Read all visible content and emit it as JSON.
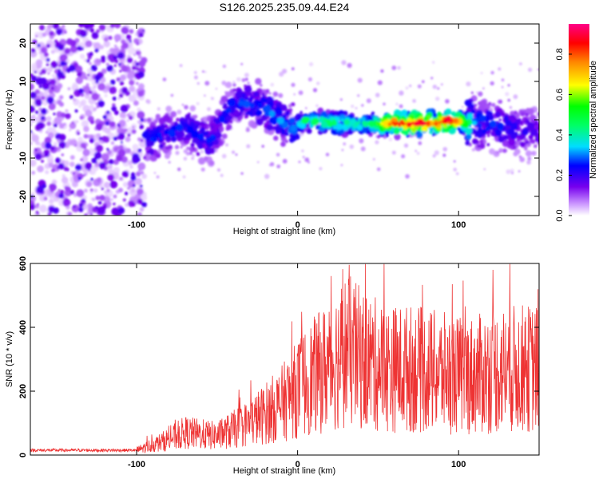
{
  "title": "S126.2025.235.09.44.E24",
  "chart_data": [
    {
      "type": "heatmap",
      "xlabel": "Height of straight line (km)",
      "ylabel": "Frequency (Hz)",
      "xlim": [
        -166,
        150
      ],
      "ylim": [
        -25,
        25
      ],
      "xticks": [
        -100,
        0,
        100
      ],
      "yticks": [
        -20,
        -10,
        0,
        10,
        20
      ],
      "colorbar": {
        "label": "Normalized spectral amplitude",
        "range": [
          0,
          0.95
        ],
        "ticks": [
          0.0,
          0.2,
          0.4,
          0.6,
          0.8
        ],
        "colors": [
          "#ffffff",
          "#cc99ff",
          "#7700ee",
          "#0000ff",
          "#00ddff",
          "#00ff66",
          "#00ff00",
          "#ffff00",
          "#ff8800",
          "#ff0000",
          "#ff0088"
        ]
      },
      "ridge": [
        {
          "x": -90,
          "y": -5,
          "a": 0.25
        },
        {
          "x": -70,
          "y": -2,
          "a": 0.25
        },
        {
          "x": -55,
          "y": -6,
          "a": 0.25
        },
        {
          "x": -40,
          "y": 5,
          "a": 0.25
        },
        {
          "x": -20,
          "y": 3,
          "a": 0.3
        },
        {
          "x": -5,
          "y": -2,
          "a": 0.3
        },
        {
          "x": 5,
          "y": 0,
          "a": 0.45
        },
        {
          "x": 25,
          "y": -1,
          "a": 0.45
        },
        {
          "x": 45,
          "y": -1,
          "a": 0.4
        },
        {
          "x": 60,
          "y": -1,
          "a": 0.85
        },
        {
          "x": 75,
          "y": -1,
          "a": 0.85
        },
        {
          "x": 85,
          "y": -1,
          "a": 0.8
        },
        {
          "x": 95,
          "y": 0,
          "a": 0.9
        },
        {
          "x": 110,
          "y": -1,
          "a": 0.3
        },
        {
          "x": 130,
          "y": -2,
          "a": 0.25
        },
        {
          "x": 145,
          "y": -3,
          "a": 0.2
        }
      ]
    },
    {
      "type": "line",
      "xlabel": "Height of straight line (km)",
      "ylabel": "SNR (10 * v/v)",
      "xlim": [
        -166,
        150
      ],
      "ylim": [
        0,
        600
      ],
      "xticks": [
        -100,
        0,
        100
      ],
      "yticks": [
        0,
        200,
        400,
        600
      ],
      "color": "#ee3333",
      "envelope": [
        {
          "x": -166,
          "y": 15
        },
        {
          "x": -100,
          "y": 15
        },
        {
          "x": -85,
          "y": 40
        },
        {
          "x": -70,
          "y": 70
        },
        {
          "x": -50,
          "y": 60
        },
        {
          "x": -30,
          "y": 100
        },
        {
          "x": -10,
          "y": 160
        },
        {
          "x": 5,
          "y": 230
        },
        {
          "x": 20,
          "y": 280
        },
        {
          "x": 30,
          "y": 330
        },
        {
          "x": 40,
          "y": 300
        },
        {
          "x": 55,
          "y": 270
        },
        {
          "x": 70,
          "y": 270
        },
        {
          "x": 85,
          "y": 260
        },
        {
          "x": 100,
          "y": 250
        },
        {
          "x": 110,
          "y": 250
        },
        {
          "x": 130,
          "y": 270
        },
        {
          "x": 150,
          "y": 270
        }
      ]
    }
  ]
}
